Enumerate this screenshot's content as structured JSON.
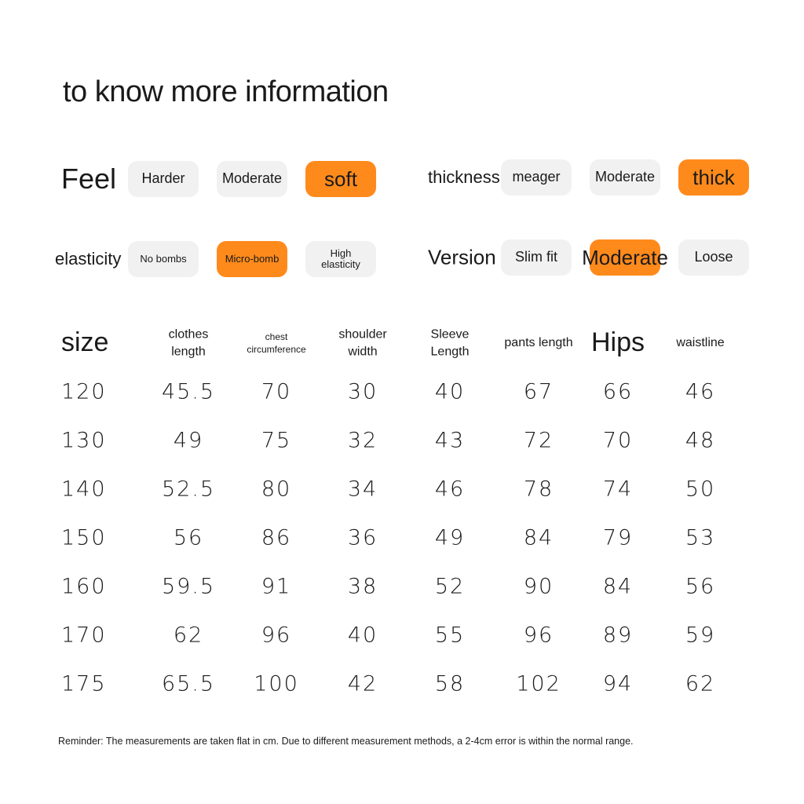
{
  "header": {
    "title": "to know more information"
  },
  "attributes": [
    {
      "label": "Feel",
      "options": [
        "Harder",
        "Moderate",
        "soft"
      ],
      "selected": 2
    },
    {
      "label": "thickness",
      "options": [
        "meager",
        "Moderate",
        "thick"
      ],
      "selected": 2
    },
    {
      "label": "elasticity",
      "options": [
        "No bombs",
        "Micro-bomb",
        "High elasticity"
      ],
      "selected": 1
    },
    {
      "label": "Version",
      "options": [
        "Slim fit",
        "Moderate",
        "Loose"
      ],
      "selected": 1
    }
  ],
  "highlight_color": "#ff8a1c",
  "table": {
    "columns": [
      "size",
      "clothes length",
      "chest circumference",
      "shoulder width",
      "Sleeve Length",
      "pants length",
      "Hips",
      "waistline"
    ],
    "rows": [
      [
        120,
        45.5,
        70,
        30,
        40,
        67,
        66,
        46
      ],
      [
        130,
        49,
        75,
        32,
        43,
        72,
        70,
        48
      ],
      [
        140,
        52.5,
        80,
        34,
        46,
        78,
        74,
        50
      ],
      [
        150,
        56,
        86,
        36,
        49,
        84,
        79,
        53
      ],
      [
        160,
        59.5,
        91,
        38,
        52,
        90,
        84,
        56
      ],
      [
        170,
        62,
        96,
        40,
        55,
        96,
        89,
        59
      ],
      [
        175,
        65.5,
        100,
        42,
        58,
        102,
        94,
        62
      ]
    ]
  },
  "footer": {
    "note": "Reminder: The measurements are taken flat in cm. Due to different measurement methods, a 2-4cm error is within the normal range."
  }
}
